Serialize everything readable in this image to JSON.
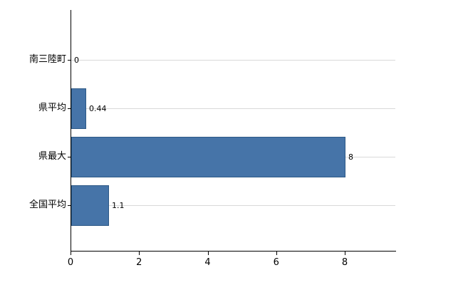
{
  "chart_data": {
    "type": "bar",
    "orientation": "horizontal",
    "title": "",
    "categories": [
      "南三陸町",
      "県平均",
      "県最大",
      "全国平均"
    ],
    "values": [
      0,
      0.44,
      8,
      1.1
    ],
    "value_labels": [
      "0",
      "0.44",
      "8",
      "1.1"
    ],
    "x_ticks": [
      "0",
      "2",
      "4",
      "6",
      "8"
    ],
    "x_tick_values": [
      0,
      2,
      4,
      6,
      8
    ],
    "xlim": [
      0,
      9.5
    ],
    "grid": true,
    "legend": false,
    "bar_color": "#4674a8",
    "bar_border_color": "#2d5986",
    "axis_color": "#000000",
    "grid_color": "#d9d9d9",
    "background_color": "#ffffff"
  }
}
